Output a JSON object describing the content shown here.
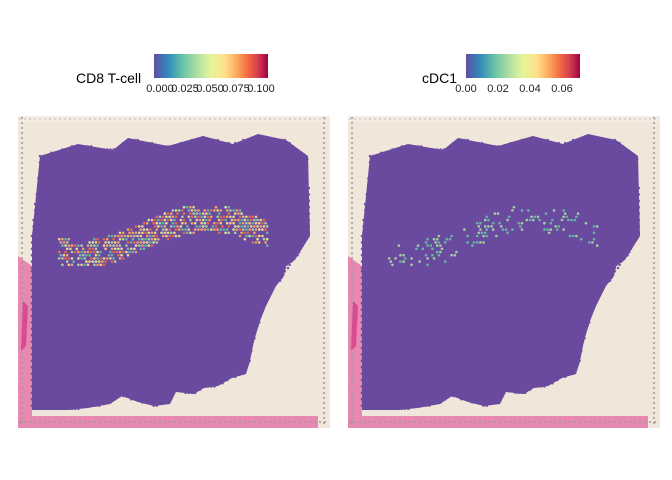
{
  "panels": [
    {
      "id": "cd8",
      "legend_title": "CD8 T-cell",
      "tick_labels": [
        "0.000",
        "0.025",
        "0.050",
        "0.075",
        "0.100"
      ],
      "tick_values": [
        0.0,
        0.025,
        0.05,
        0.075,
        0.1
      ],
      "range": [
        0,
        0.105
      ]
    },
    {
      "id": "cdc1",
      "legend_title": "cDC1",
      "tick_labels": [
        "0.00",
        "0.02",
        "0.04",
        "0.06"
      ],
      "tick_values": [
        0.0,
        0.02,
        0.04,
        0.06
      ],
      "range": [
        0,
        0.07
      ]
    }
  ],
  "colors": {
    "spot_base": "#6a4a9e",
    "background_tissue": "#f0e6d9",
    "stain_pink": "#e0569a",
    "grid_dots": "#9a9a9a",
    "palette": "Spectral (reversed)"
  }
}
